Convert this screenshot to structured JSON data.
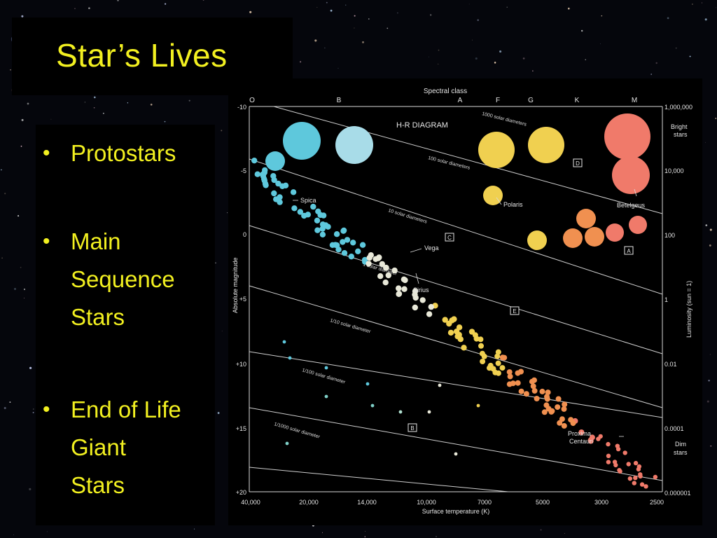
{
  "slide": {
    "title": "Star’s Lives",
    "bullets": [
      {
        "text_lines": [
          "Protostars"
        ]
      },
      {
        "text_lines": [
          "Main",
          "Sequence",
          "Stars"
        ]
      },
      {
        "text_lines": [
          "End of Life",
          "Giant",
          "Stars"
        ]
      }
    ]
  },
  "diagram": {
    "title": "H-R DIAGRAM",
    "top_axis_label": "Spectral class",
    "spectral_classes": [
      "O",
      "B",
      "A",
      "F",
      "G",
      "K",
      "M"
    ],
    "left_axis_label": "Absolute magnitude",
    "left_ticks": [
      "-10",
      "-5",
      "0",
      "+5",
      "+10",
      "+15",
      "+20"
    ],
    "right_axis_label": "Luminosity (sun = 1)",
    "right_ticks": [
      "1,000,000",
      "10,000",
      "100",
      "1",
      "0.01",
      "0.0001",
      "0.000001"
    ],
    "right_notes": {
      "bright": [
        "Bright",
        "stars"
      ],
      "dim": [
        "Dim",
        "stars"
      ]
    },
    "bottom_axis_label": "Surface temperature (K)",
    "bottom_ticks": [
      "40,000",
      "20,000",
      "14,000",
      "10,000",
      "7000",
      "5000",
      "3000",
      "2500"
    ],
    "radius_lines": [
      "1000 solar diameters",
      "100 solar diameters",
      "10 solar diameters",
      "1 solar diameter",
      "1/10 solar diameter",
      "1/100 solar diameter",
      "1/1000 solar diameter"
    ],
    "region_boxes": [
      "A",
      "B",
      "C",
      "D",
      "E"
    ],
    "star_labels": {
      "spica": "Spica",
      "vega": "Vega",
      "sirius": "Sirius",
      "polaris": "Polaris",
      "betelgeuse": "Betelgeus",
      "proxima": [
        "Proxima",
        "Centauri"
      ]
    },
    "colors": {
      "blue": "#5ec8dc",
      "white": "#e8e8d8",
      "yellow": "#f0d050",
      "orange": "#f09050",
      "red": "#f07a6a"
    }
  }
}
